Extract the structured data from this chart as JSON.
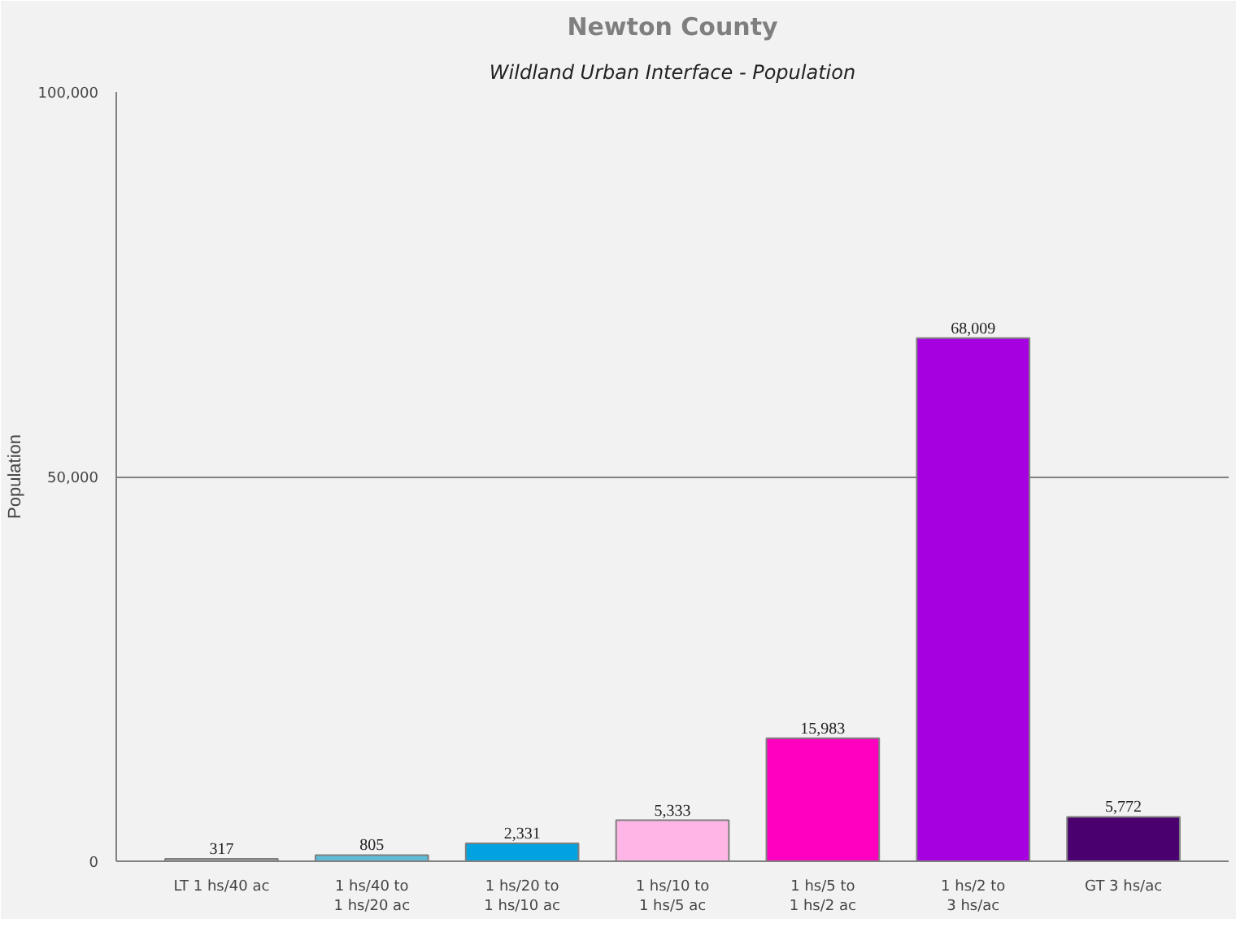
{
  "chart_data": {
    "type": "bar",
    "title": "Newton County",
    "subtitle": "Wildland Urban Interface - Population",
    "ylabel": "Population",
    "categories": [
      "LT 1 hs/40 ac",
      "1 hs/40 to\n1 hs/20 ac",
      "1 hs/20 to\n1 hs/10 ac",
      "1 hs/10 to\n1 hs/5 ac",
      "1 hs/5 to\n1 hs/2 ac",
      "1 hs/2 to\n3 hs/ac",
      "GT 3 hs/ac"
    ],
    "values": [
      317,
      805,
      2331,
      5333,
      15983,
      68009,
      5772
    ],
    "colors": [
      "#a6a6a6",
      "#5fbcd9",
      "#00a3e0",
      "#ffb6e6",
      "#ff00c0",
      "#a600e0",
      "#4b0070"
    ],
    "ylim": [
      0,
      100000
    ],
    "yticks": [
      0,
      {
        "value": 50000,
        "label": "50,000"
      },
      {
        "value": 100000,
        "label": "100,000"
      }
    ],
    "value_labels": [
      "317",
      "805",
      "2,331",
      "5,333",
      "15,983",
      "68,009",
      "5,772"
    ],
    "grid": "y"
  }
}
